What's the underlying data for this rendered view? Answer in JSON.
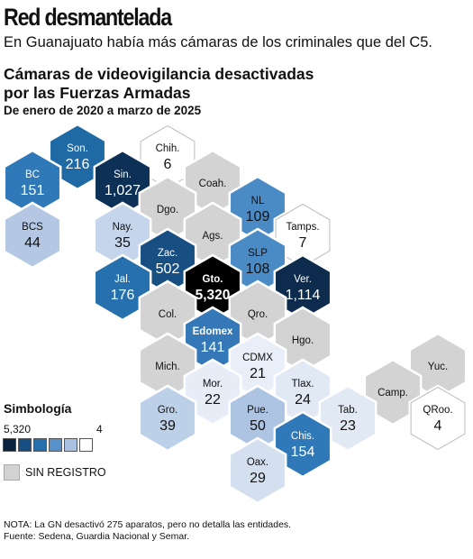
{
  "header": {
    "headline": "Red desmantelada",
    "deck": "En Guanajuato había más cámaras de los criminales que del C5."
  },
  "chart_data": {
    "type": "heatmap",
    "title_lines": [
      "Cámaras de videovigilancia desactivadas",
      "por las Fuerzas Armadas"
    ],
    "subtitle": "De enero de 2020 a marzo de 2025",
    "states": [
      {
        "abbr": "Son.",
        "value": "216",
        "color": "#1f6aa5"
      },
      {
        "abbr": "Chih.",
        "value": "6",
        "color": "#ffffff"
      },
      {
        "abbr": "BC",
        "value": "151",
        "color": "#2f79b8"
      },
      {
        "abbr": "Sin.",
        "value": "1,027",
        "color": "#0d3057"
      },
      {
        "abbr": "Coah.",
        "value": "",
        "color": "#d3d3d3"
      },
      {
        "abbr": "BCS",
        "value": "44",
        "color": "#b4c8e4"
      },
      {
        "abbr": "Dgo.",
        "value": "",
        "color": "#d3d3d3"
      },
      {
        "abbr": "NL",
        "value": "109",
        "color": "#4a8bc6"
      },
      {
        "abbr": "Nay.",
        "value": "35",
        "color": "#c5d6ec"
      },
      {
        "abbr": "Ags.",
        "value": "",
        "color": "#d3d3d3"
      },
      {
        "abbr": "Tamps.",
        "value": "7",
        "color": "#ffffff"
      },
      {
        "abbr": "Zac.",
        "value": "502",
        "color": "#174f82"
      },
      {
        "abbr": "SLP",
        "value": "108",
        "color": "#4a8bc6"
      },
      {
        "abbr": "Jal.",
        "value": "176",
        "color": "#2670ad"
      },
      {
        "abbr": "Gto.",
        "value": "5,320",
        "color": "#000000"
      },
      {
        "abbr": "Ver.",
        "value": "1,114",
        "color": "#0c2b4d"
      },
      {
        "abbr": "Col.",
        "value": "",
        "color": "#d3d3d3"
      },
      {
        "abbr": "Qro.",
        "value": "",
        "color": "#d3d3d3"
      },
      {
        "abbr": "Edomex",
        "value": "141",
        "color": "#3478b8"
      },
      {
        "abbr": "Hgo.",
        "value": "",
        "color": "#d3d3d3"
      },
      {
        "abbr": "Mich.",
        "value": "",
        "color": "#d3d3d3"
      },
      {
        "abbr": "CDMX",
        "value": "21",
        "color": "#e9eff8"
      },
      {
        "abbr": "Yuc.",
        "value": "",
        "color": "#d3d3d3"
      },
      {
        "abbr": "Mor.",
        "value": "22",
        "color": "#e6edf7"
      },
      {
        "abbr": "Tlax.",
        "value": "24",
        "color": "#e1e9f5"
      },
      {
        "abbr": "Camp.",
        "value": "",
        "color": "#d3d3d3"
      },
      {
        "abbr": "Gro.",
        "value": "39",
        "color": "#bcd0e8"
      },
      {
        "abbr": "Pue.",
        "value": "50",
        "color": "#adc4e2"
      },
      {
        "abbr": "Tab.",
        "value": "23",
        "color": "#e1e9f5"
      },
      {
        "abbr": "QRoo.",
        "value": "4",
        "color": "#ffffff"
      },
      {
        "abbr": "Chis.",
        "value": "154",
        "color": "#2f79b8"
      },
      {
        "abbr": "Oax.",
        "value": "29",
        "color": "#d4e0f0"
      }
    ]
  },
  "legend": {
    "title": "Simbología",
    "max_label": "5,320",
    "min_label": "4",
    "scale_colors": [
      "#0a2440",
      "#174f82",
      "#2670ad",
      "#5791c9",
      "#a9c1e0",
      "#ffffff"
    ],
    "no_data_label": "SIN REGISTRO",
    "no_data_color": "#d3d3d3"
  },
  "notes": {
    "note": "NOTA: La GN desactivó 275 aparatos, pero no detalla las entidades.",
    "source": "Fuente: Sedena, Guardia Nacional y Semar."
  }
}
